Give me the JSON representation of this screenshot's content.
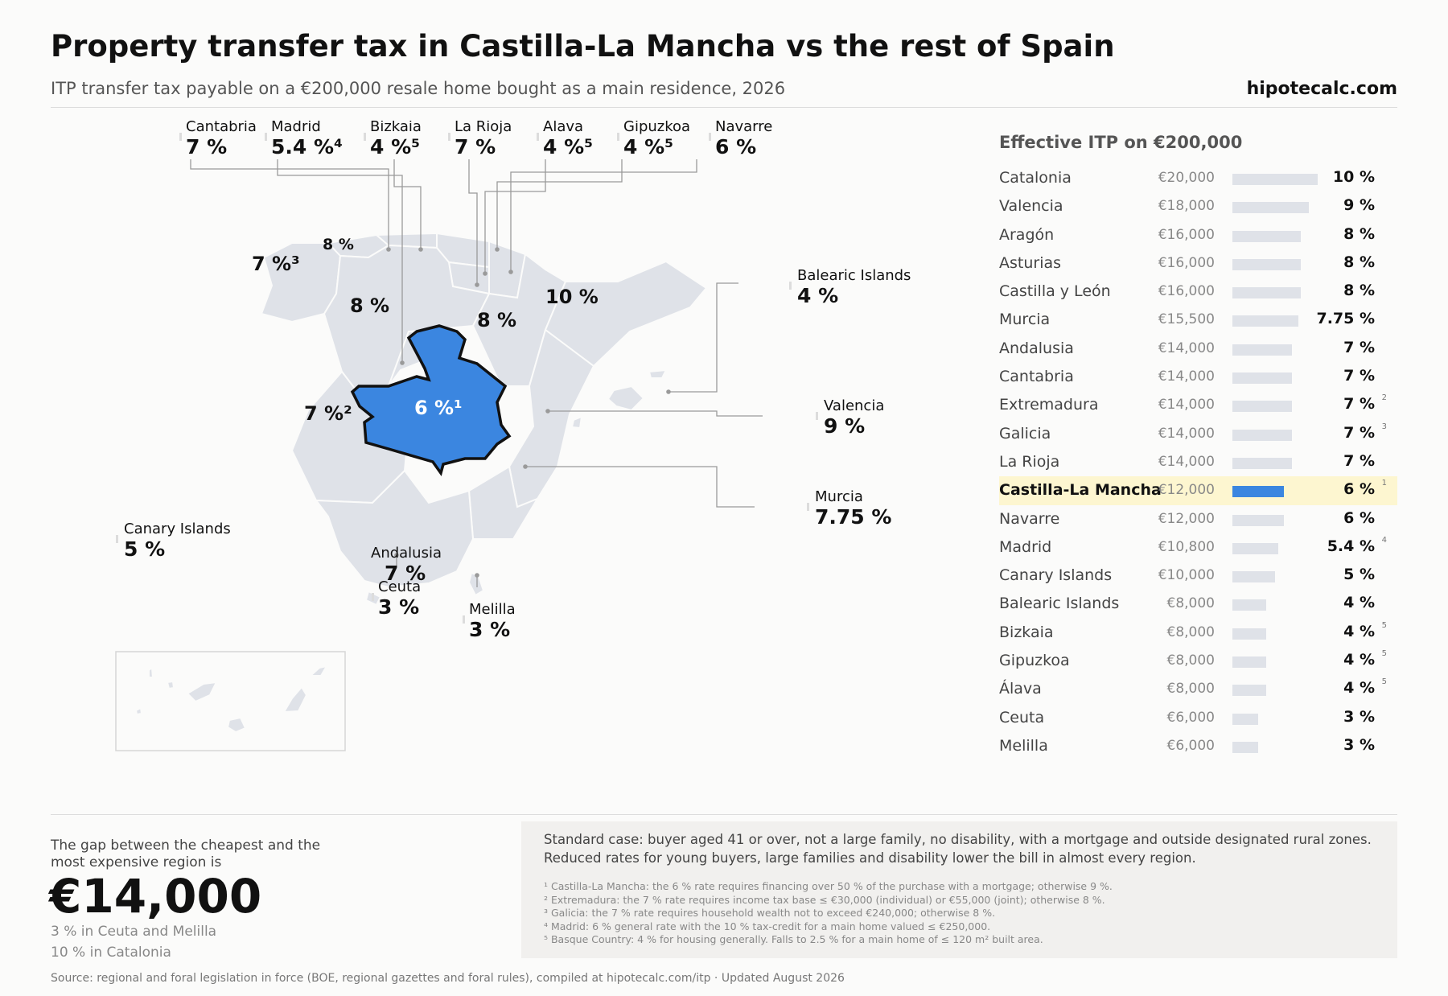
{
  "header": {
    "title": "Property transfer tax in Castilla-La Mancha vs the rest of Spain",
    "subtitle": "ITP transfer tax payable on a €200,000 resale home bought as a main residence, 2026",
    "brand": "hipotecalc.com"
  },
  "colors": {
    "highlight": "#3b86e0",
    "region": "#dfe2e8",
    "row_highlight": "#fdf6d0"
  },
  "map": {
    "callouts": [
      {
        "name": "Cantabria",
        "rate": "7 %"
      },
      {
        "name": "Madrid",
        "rate": "5.4 %⁴"
      },
      {
        "name": "Bizkaia",
        "rate": "4 %⁵"
      },
      {
        "name": "La Rioja",
        "rate": "7 %"
      },
      {
        "name": "Álava",
        "rate": "4 %⁵"
      },
      {
        "name": "Gipuzkoa",
        "rate": "4 %⁵"
      },
      {
        "name": "Navarre",
        "rate": "6 %"
      },
      {
        "name": "Balearic Islands",
        "rate": "4 %"
      },
      {
        "name": "Valencia",
        "rate": "9 %"
      },
      {
        "name": "Murcia",
        "rate": "7.75 %"
      },
      {
        "name": "Andalusia",
        "rate": "7 %"
      },
      {
        "name": "Canary Islands",
        "rate": "5 %"
      },
      {
        "name": "Ceuta",
        "rate": "3 %"
      },
      {
        "name": "Melilla",
        "rate": "3 %"
      }
    ],
    "in_map_rates": {
      "galicia": "7 %³",
      "asturias": "8 %",
      "castilla_leon": "8 %",
      "aragon": "8 %",
      "catalonia": "10 %",
      "extremadura": "7 %²",
      "castilla_la_mancha": "6 %¹"
    }
  },
  "sidebar": {
    "title": "Effective ITP on €200,000",
    "rows": [
      {
        "name": "Catalonia",
        "amount": "€20,000",
        "value": 20000,
        "rate": "10 %",
        "note": ""
      },
      {
        "name": "Valencia",
        "amount": "€18,000",
        "value": 18000,
        "rate": "9 %",
        "note": ""
      },
      {
        "name": "Aragón",
        "amount": "€16,000",
        "value": 16000,
        "rate": "8 %",
        "note": ""
      },
      {
        "name": "Asturias",
        "amount": "€16,000",
        "value": 16000,
        "rate": "8 %",
        "note": ""
      },
      {
        "name": "Castilla y León",
        "amount": "€16,000",
        "value": 16000,
        "rate": "8 %",
        "note": ""
      },
      {
        "name": "Murcia",
        "amount": "€15,500",
        "value": 15500,
        "rate": "7.75 %",
        "note": ""
      },
      {
        "name": "Andalusia",
        "amount": "€14,000",
        "value": 14000,
        "rate": "7 %",
        "note": ""
      },
      {
        "name": "Cantabria",
        "amount": "€14,000",
        "value": 14000,
        "rate": "7 %",
        "note": ""
      },
      {
        "name": "Extremadura",
        "amount": "€14,000",
        "value": 14000,
        "rate": "7 %",
        "note": "2"
      },
      {
        "name": "Galicia",
        "amount": "€14,000",
        "value": 14000,
        "rate": "7 %",
        "note": "3"
      },
      {
        "name": "La Rioja",
        "amount": "€14,000",
        "value": 14000,
        "rate": "7 %",
        "note": ""
      },
      {
        "name": "Castilla-La Mancha",
        "amount": "€12,000",
        "value": 12000,
        "rate": "6 %",
        "note": "1",
        "highlight": true
      },
      {
        "name": "Navarre",
        "amount": "€12,000",
        "value": 12000,
        "rate": "6 %",
        "note": ""
      },
      {
        "name": "Madrid",
        "amount": "€10,800",
        "value": 10800,
        "rate": "5.4 %",
        "note": "4"
      },
      {
        "name": "Canary Islands",
        "amount": "€10,000",
        "value": 10000,
        "rate": "5 %",
        "note": ""
      },
      {
        "name": "Balearic Islands",
        "amount": "€8,000",
        "value": 8000,
        "rate": "4 %",
        "note": ""
      },
      {
        "name": "Bizkaia",
        "amount": "€8,000",
        "value": 8000,
        "rate": "4 %",
        "note": "5"
      },
      {
        "name": "Gipuzkoa",
        "amount": "€8,000",
        "value": 8000,
        "rate": "4 %",
        "note": "5"
      },
      {
        "name": "Álava",
        "amount": "€8,000",
        "value": 8000,
        "rate": "4 %",
        "note": "5"
      },
      {
        "name": "Ceuta",
        "amount": "€6,000",
        "value": 6000,
        "rate": "3 %",
        "note": ""
      },
      {
        "name": "Melilla",
        "amount": "€6,000",
        "value": 6000,
        "rate": "3 %",
        "note": ""
      }
    ]
  },
  "gap": {
    "label": "The gap between the cheapest and the most expensive region is",
    "value": "€14,000",
    "low": "3 % in Ceuta and Melilla",
    "high": "10 % in Catalonia"
  },
  "notes": {
    "standard_case": "Standard case: buyer aged 41 or over, not a large family, no disability, with a mortgage and outside designated rural zones. Reduced rates for young buyers, large families and disability lower the bill in almost every region.",
    "footnotes": [
      "¹ Castilla-La Mancha: the 6 % rate requires financing over 50 % of the purchase with a mortgage; otherwise 9 %.",
      "² Extremadura: the 7 % rate requires income tax base ≤ €30,000 (individual) or €55,000 (joint); otherwise 8 %.",
      "³ Galicia: the 7 % rate requires household wealth not to exceed €240,000; otherwise 8 %.",
      "⁴ Madrid: 6 % general rate with the 10 % tax-credit for a main home valued ≤ €250,000.",
      "⁵ Basque Country: 4 % for housing generally. Falls to 2.5 % for a main home of ≤ 120 m² built area."
    ]
  },
  "source": "Source: regional and foral legislation in force (BOE, regional gazettes and foral rules), compiled at hipotecalc.com/itp · Updated August 2026"
}
